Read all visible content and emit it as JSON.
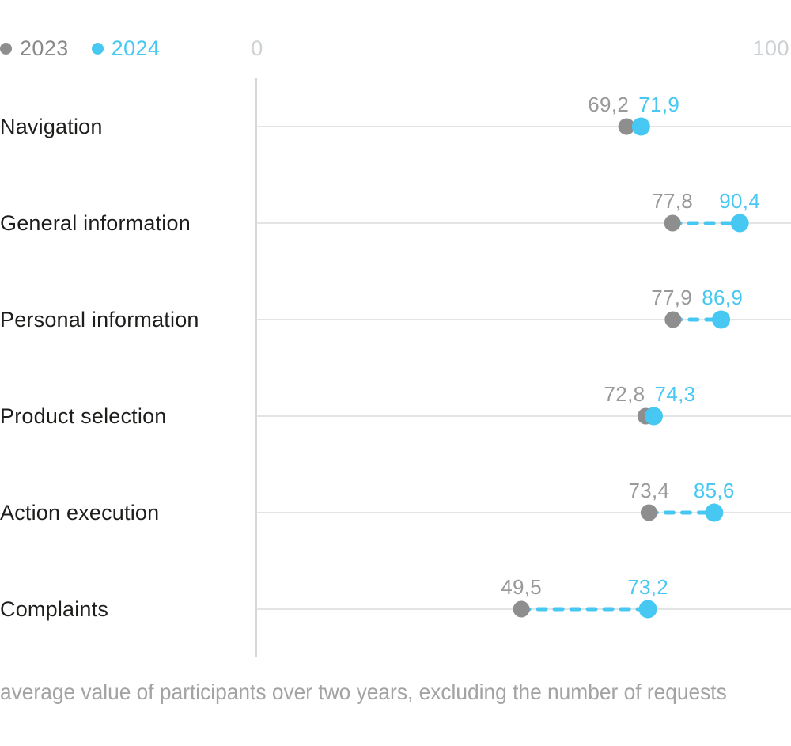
{
  "legend": {
    "items": [
      {
        "label": "2023",
        "color": "#8e8e8e"
      },
      {
        "label": "2024",
        "color": "#47c8f2"
      }
    ]
  },
  "axis": {
    "min_label": "0",
    "max_label": "100"
  },
  "chart_data": {
    "type": "dumbbell",
    "categories": [
      "Navigation",
      "General information",
      "Personal information",
      "Product selection",
      "Action execution",
      "Complaints"
    ],
    "series": [
      {
        "name": "2023",
        "color": "#8e8e8e",
        "values": [
          69.2,
          77.8,
          77.9,
          72.8,
          73.4,
          49.5
        ]
      },
      {
        "name": "2024",
        "color": "#47c8f2",
        "values": [
          71.9,
          90.4,
          86.9,
          74.3,
          85.6,
          73.2
        ]
      }
    ],
    "value_labels": [
      [
        "69,2",
        "71,9"
      ],
      [
        "77,8",
        "90,4"
      ],
      [
        "77,9",
        "86,9"
      ],
      [
        "72,8",
        "74,3"
      ],
      [
        "73,4",
        "85,6"
      ],
      [
        "49,5",
        "73,2"
      ]
    ],
    "xlim": [
      0,
      100
    ],
    "decimal_separator": ",",
    "grid": "horizontal-row-lines",
    "legend_position": "top-left",
    "connector_style": "dashed"
  },
  "footer": {
    "caption": "average value of participants over two years, excluding the number of requests"
  },
  "colors": {
    "category_text": "#1d1d1b",
    "value_2023": "#999999",
    "value_2024": "#47c8f2",
    "grid_line": "#dbdbdb",
    "axis_line": "#d6d6d6",
    "axis_text": "#ccd1d4",
    "footer_text": "#a3a3a3",
    "legend_2023_text": "#8a8a8a",
    "legend_2024_text": "#47c8f2"
  }
}
